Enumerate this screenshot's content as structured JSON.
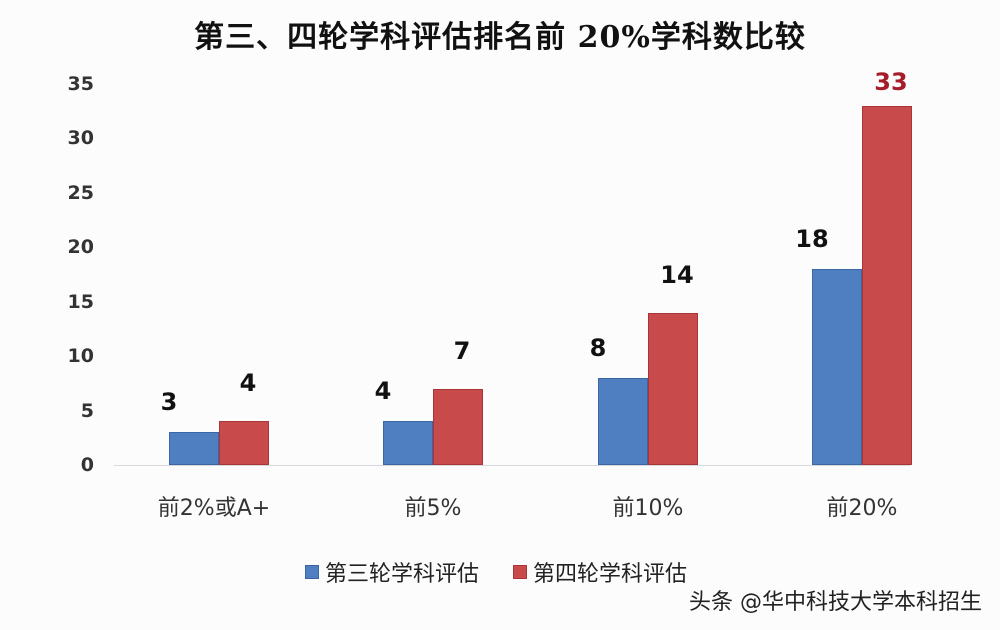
{
  "chart_data": {
    "type": "bar",
    "title": "第三、四轮学科评估排名前 20%学科数比较",
    "xlabel": "",
    "ylabel": "",
    "ylim": [
      0,
      35
    ],
    "yticks": [
      0,
      5,
      10,
      15,
      20,
      25,
      30,
      35
    ],
    "grid": false,
    "legend_position": "bottom",
    "categories": [
      "前2%或A+",
      "前5%",
      "前10%",
      "前20%"
    ],
    "series": [
      {
        "name": "第三轮学科评估",
        "color": "#4f7fc0",
        "values": [
          3,
          4,
          8,
          18
        ]
      },
      {
        "name": "第四轮学科评估",
        "color": "#c84a4b",
        "values": [
          4,
          7,
          14,
          33
        ]
      }
    ],
    "annotations": [
      {
        "text": "33",
        "color": "#a51c2a",
        "note": "highlighted value label"
      }
    ]
  },
  "ui": {
    "watermark": "头条 @华中科技大学本科招生",
    "highlight_color": "#a51c2a"
  }
}
